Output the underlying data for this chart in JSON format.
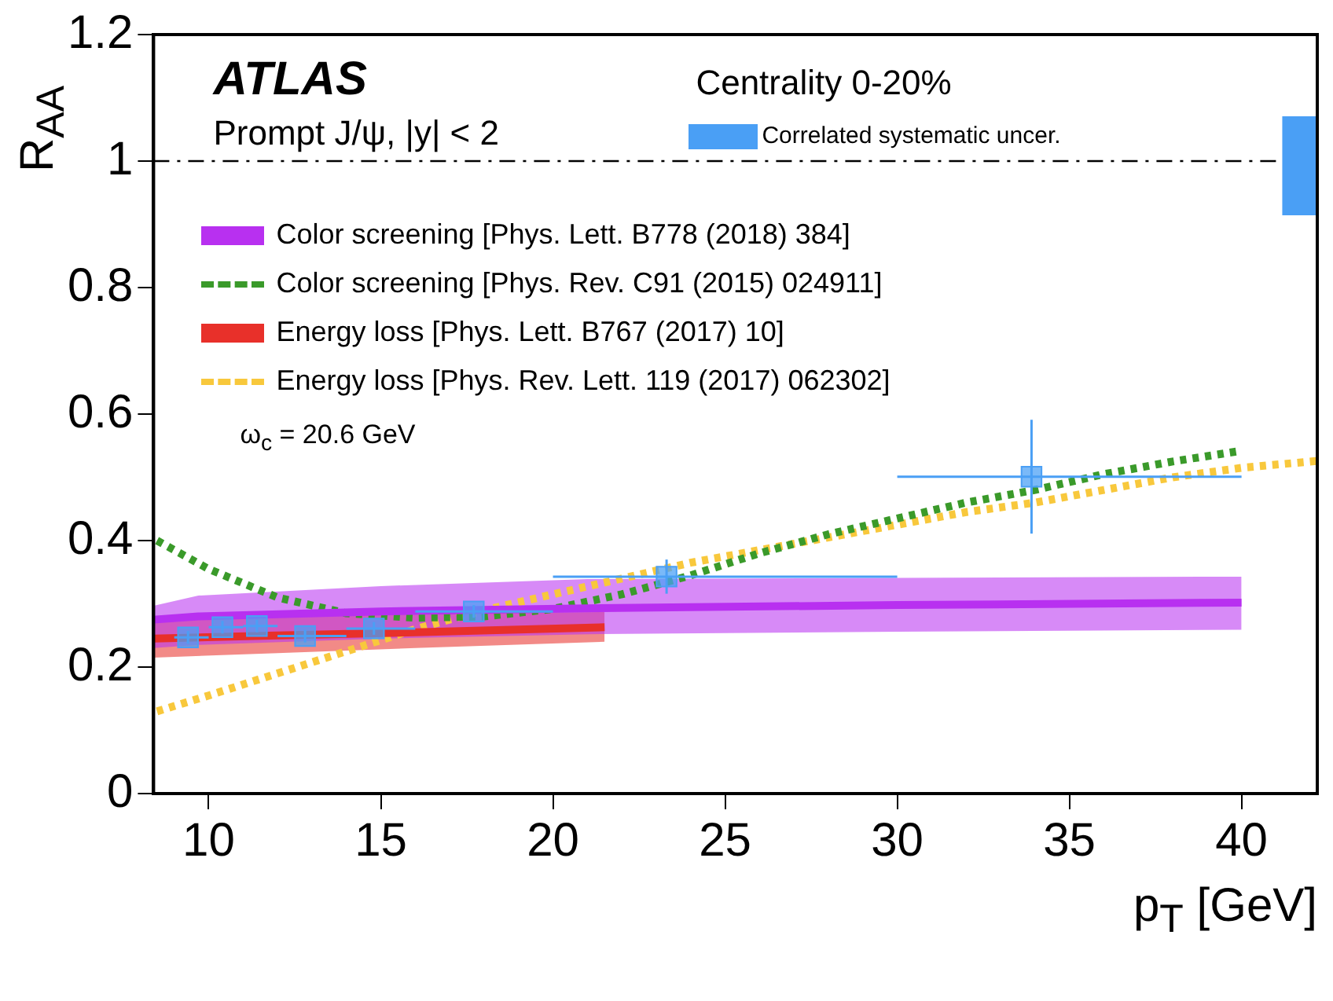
{
  "chart_data": {
    "type": "scatter",
    "xlabel": "p$_{T}$ [GeV]",
    "ylabel": "R$_{AA}$",
    "xlim": [
      8.4,
      42.2
    ],
    "ylim": [
      0,
      1.2
    ],
    "xticks": [
      10,
      15,
      20,
      25,
      30,
      35,
      40
    ],
    "yticks": [
      0,
      0.2,
      0.4,
      0.6,
      0.8,
      1,
      1.2
    ],
    "grid": false,
    "legend": "top left",
    "annotations": [
      "ATLAS",
      "Prompt J/ψ, |y| < 2",
      "Centrality 0-20%",
      "ω$_{c}$ = 20.6 GeV"
    ],
    "ref_lines": [
      {
        "axis": "y",
        "value": 1,
        "line_style": "dashed",
        "color": "#000000"
      }
    ],
    "series": [
      {
        "name": "Color screening [Phys. Lett. B778 (2018) 384]",
        "type": "line",
        "color": "#b830f0",
        "marker": "none",
        "line_style": "solid",
        "x": [
          8.4,
          9.7,
          15,
          21,
          30,
          40
        ],
        "values": [
          0.275,
          0.28,
          0.288,
          0.293,
          0.298,
          0.302
        ],
        "lower": [
          0.23,
          0.235,
          0.245,
          0.252,
          0.256,
          0.259
        ],
        "upper": [
          0.297,
          0.313,
          0.328,
          0.339,
          0.341,
          0.343
        ]
      },
      {
        "name": "Color screening [Phys. Rev. C91 (2015) 024911]",
        "type": "line",
        "color": "#3a9a2a",
        "marker": "none",
        "line_style": "dotted",
        "x": [
          8.5,
          10,
          12,
          14,
          16,
          18,
          20,
          22,
          24,
          26,
          28,
          30,
          32,
          34,
          36,
          38,
          40
        ],
        "values": [
          0.4,
          0.355,
          0.31,
          0.285,
          0.278,
          0.28,
          0.292,
          0.315,
          0.345,
          0.38,
          0.41,
          0.435,
          0.46,
          0.48,
          0.505,
          0.525,
          0.542
        ]
      },
      {
        "name": "Energy loss [Phys. Lett. B767 (2017) 10]",
        "type": "line",
        "color": "#e8302a",
        "marker": "none",
        "line_style": "solid",
        "x": [
          8.4,
          12,
          16,
          21.5
        ],
        "values": [
          0.245,
          0.25,
          0.255,
          0.263
        ],
        "lower": [
          0.215,
          0.222,
          0.23,
          0.24
        ],
        "upper": [
          0.275,
          0.28,
          0.285,
          0.287
        ]
      },
      {
        "name": "Energy loss [Phys. Rev. Lett. 119 (2017) 062302]",
        "type": "line",
        "color": "#f8c83c",
        "marker": "none",
        "line_style": "dotted",
        "x": [
          8.5,
          10,
          12,
          14,
          16,
          18,
          20,
          22,
          24,
          26,
          28,
          30,
          32,
          34,
          36,
          38,
          40,
          42.2
        ],
        "values": [
          0.13,
          0.155,
          0.19,
          0.225,
          0.26,
          0.29,
          0.315,
          0.34,
          0.365,
          0.385,
          0.405,
          0.425,
          0.445,
          0.46,
          0.48,
          0.5,
          0.515,
          0.526
        ]
      },
      {
        "name": "Correlated systematic uncer.",
        "type": "bar",
        "color": "#4a9ff5",
        "x": [
          41.7
        ],
        "base": [
          0.915
        ],
        "values": [
          0.155
        ]
      },
      {
        "color": "#4a9ff5",
        "marker": "square",
        "x": [
          9.4,
          10.4,
          11.4,
          12.8,
          14.8,
          17.7,
          23.3,
          33.9
        ],
        "values": [
          0.247,
          0.263,
          0.265,
          0.249,
          0.261,
          0.288,
          0.343,
          0.501
        ],
        "errors": [
          0.01,
          0.01,
          0.01,
          0.01,
          0.01,
          0.01,
          0.027,
          0.09
        ],
        "xerrors": [
          [
            9,
            10
          ],
          [
            10,
            11
          ],
          [
            11,
            12
          ],
          [
            12,
            14
          ],
          [
            14,
            16
          ],
          [
            16,
            20
          ],
          [
            20,
            30
          ],
          [
            30,
            40
          ]
        ]
      }
    ]
  }
}
